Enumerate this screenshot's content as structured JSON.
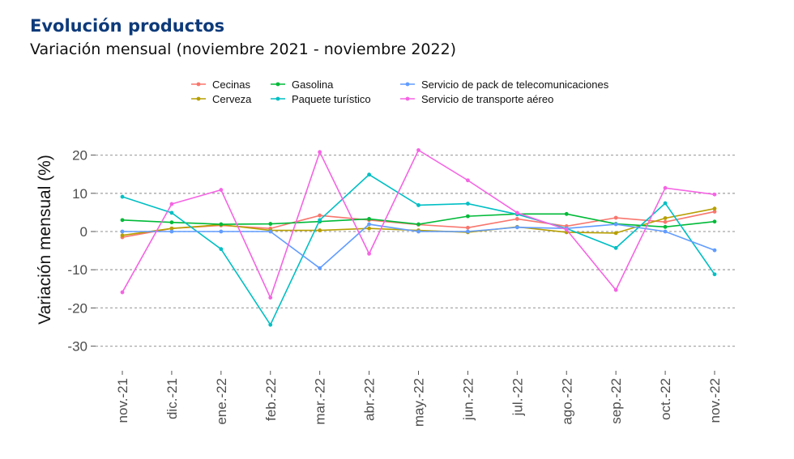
{
  "header": {
    "title": "Evolución productos",
    "subtitle": "Variación mensual (noviembre 2021 - noviembre 2022)"
  },
  "chart_data": {
    "type": "line",
    "title": "Evolución productos",
    "subtitle": "Variación mensual (noviembre 2021 - noviembre 2022)",
    "xlabel": "",
    "ylabel": "Variación mensual (%)",
    "ylim": [
      -35,
      22
    ],
    "yticks": [
      20,
      10,
      0,
      -10,
      -20,
      -30
    ],
    "ytick_labels": [
      "20",
      "10",
      "0",
      "-10",
      "-20",
      "-30"
    ],
    "grid": true,
    "legend_position": "top",
    "categories": [
      "nov.-21",
      "dic.-21",
      "ene.-22",
      "feb.-22",
      "mar.-22",
      "abr.-22",
      "may.-22",
      "jun.-22",
      "jul.-22",
      "ago.-22",
      "sep.-22",
      "oct.-22",
      "nov.-22"
    ],
    "series": [
      {
        "name": "Cecinas",
        "color": "#f8766d",
        "values": [
          -1.5,
          0.8,
          1.6,
          0.8,
          4.2,
          3.0,
          1.8,
          1.0,
          3.3,
          1.4,
          3.6,
          2.5,
          5.2
        ]
      },
      {
        "name": "Cerveza",
        "color": "#b79f00",
        "values": [
          -1.0,
          0.8,
          1.8,
          0.3,
          0.3,
          0.8,
          0.3,
          -0.2,
          1.2,
          -0.2,
          -0.4,
          3.5,
          6.0
        ]
      },
      {
        "name": "Gasolina",
        "color": "#00ba38",
        "values": [
          3.0,
          2.4,
          1.9,
          2.0,
          2.6,
          3.3,
          1.9,
          4.0,
          4.6,
          4.6,
          2.0,
          1.2,
          2.6
        ]
      },
      {
        "name": "Paquete turístico",
        "color": "#00bfc4",
        "values": [
          9.1,
          4.9,
          -4.6,
          -24.4,
          3.0,
          14.9,
          6.9,
          7.3,
          4.5,
          0.8,
          -4.3,
          7.4,
          -11.2
        ]
      },
      {
        "name": "Servicio de pack de telecomunicaciones",
        "color": "#619cff",
        "values": [
          0.0,
          0.0,
          0.0,
          0.0,
          -9.6,
          1.9,
          0.0,
          0.0,
          1.1,
          0.8,
          1.9,
          0.0,
          -4.9
        ]
      },
      {
        "name": "Servicio de transporte aéreo",
        "color": "#f564e3",
        "values": [
          -15.9,
          7.2,
          10.9,
          -17.3,
          20.8,
          -5.8,
          21.3,
          13.4,
          4.9,
          0.5,
          -15.3,
          11.4,
          9.7
        ]
      }
    ]
  }
}
